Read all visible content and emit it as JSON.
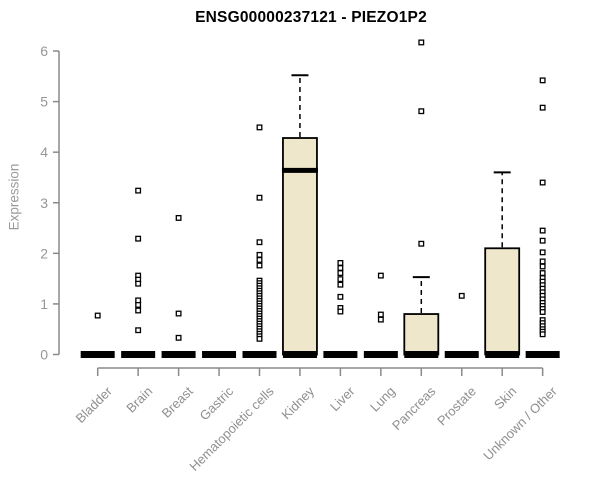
{
  "chart_data": {
    "type": "boxplot",
    "title": "ENSG00000237121 - PIEZO1P2",
    "ylabel": "Expression",
    "xlabel": "",
    "ylim": [
      0,
      6
    ],
    "yticks": [
      0,
      1,
      2,
      3,
      4,
      5,
      6
    ],
    "grid": false,
    "legend": "none",
    "marker_style": "open-square",
    "categories": [
      "Bladder",
      "Brain",
      "Breast",
      "Gastric",
      "Hematopoietic cells",
      "Kidney",
      "Liver",
      "Lung",
      "Pancreas",
      "Prostate",
      "Skin",
      "Unknown / Other"
    ],
    "boxes": [
      {
        "category": "Bladder",
        "q1": 0,
        "median": 0,
        "q3": 0,
        "whisker_low": 0,
        "whisker_high": 0,
        "outliers": [
          0.77
        ]
      },
      {
        "category": "Brain",
        "q1": 0,
        "median": 0,
        "q3": 0,
        "whisker_low": 0,
        "whisker_high": 0,
        "outliers": [
          3.24,
          2.29,
          1.56,
          1.48,
          1.4,
          1.07,
          0.98,
          0.87,
          0.48
        ]
      },
      {
        "category": "Breast",
        "q1": 0,
        "median": 0,
        "q3": 0,
        "whisker_low": 0,
        "whisker_high": 0,
        "outliers": [
          2.7,
          0.81,
          0.33
        ]
      },
      {
        "category": "Gastric",
        "q1": 0,
        "median": 0,
        "q3": 0,
        "whisker_low": 0,
        "whisker_high": 0,
        "outliers": []
      },
      {
        "category": "Hematopoietic cells",
        "q1": 0,
        "median": 0,
        "q3": 0,
        "whisker_low": 0,
        "whisker_high": 0,
        "outliers": [
          4.49,
          3.1,
          2.22,
          1.97,
          1.87,
          1.76,
          1.46,
          1.41,
          1.36,
          1.31,
          1.26,
          1.21,
          1.16,
          1.11,
          1.06,
          1.01,
          0.96,
          0.91,
          0.86,
          0.81,
          0.76,
          0.71,
          0.66,
          0.61,
          0.56,
          0.51,
          0.46,
          0.41,
          0.36,
          0.31
        ]
      },
      {
        "category": "Kidney",
        "q1": 0,
        "median": 3.64,
        "q3": 4.28,
        "whisker_low": 0,
        "whisker_high": 5.52,
        "outliers": []
      },
      {
        "category": "Liver",
        "q1": 0,
        "median": 0,
        "q3": 0,
        "whisker_low": 0,
        "whisker_high": 0,
        "outliers": [
          1.81,
          1.71,
          1.61,
          1.49,
          1.38,
          1.14,
          0.92,
          0.85
        ]
      },
      {
        "category": "Lung",
        "q1": 0,
        "median": 0,
        "q3": 0,
        "whisker_low": 0,
        "whisker_high": 0,
        "outliers": [
          1.56,
          0.79,
          0.69
        ]
      },
      {
        "category": "Pancreas",
        "q1": 0,
        "median": 0,
        "q3": 0.8,
        "whisker_low": 0,
        "whisker_high": 1.53,
        "outliers": [
          6.17,
          4.81,
          2.19
        ]
      },
      {
        "category": "Prostate",
        "q1": 0,
        "median": 0,
        "q3": 0,
        "whisker_low": 0,
        "whisker_high": 0,
        "outliers": [
          1.16
        ]
      },
      {
        "category": "Skin",
        "q1": 0,
        "median": 0,
        "q3": 2.1,
        "whisker_low": 0,
        "whisker_high": 3.6,
        "outliers": []
      },
      {
        "category": "Unknown / Other",
        "q1": 0,
        "median": 0,
        "q3": 0,
        "whisker_low": 0,
        "whisker_high": 0,
        "outliers": [
          5.42,
          4.88,
          3.4,
          2.45,
          2.25,
          2.02,
          1.84,
          1.74,
          1.61,
          1.51,
          1.44,
          1.37,
          1.3,
          1.23,
          1.16,
          1.09,
          1.02,
          0.96,
          0.9,
          0.84,
          0.68,
          0.62,
          0.56,
          0.5,
          0.45,
          0.4
        ]
      }
    ],
    "colors": {
      "box_fill": "#EEE7CC",
      "box_border": "#000000",
      "median": "#000000",
      "whisker": "#000000",
      "outlier": "#000000",
      "axis_line": "#8a8a8a",
      "tick_label": "#979797",
      "category_label": "#8f8f8f",
      "title": "#000000",
      "background": "#ffffff"
    }
  }
}
